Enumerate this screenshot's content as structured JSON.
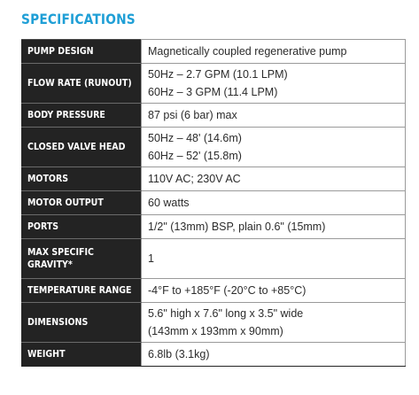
{
  "title": "SPECIFICATIONS",
  "specs": [
    {
      "label": "PUMP DESIGN",
      "values": [
        "Magnetically coupled regenerative pump"
      ]
    },
    {
      "label": "FLOW RATE (RUNOUT)",
      "values": [
        "50Hz – 2.7 GPM (10.1 LPM)",
        "60Hz – 3 GPM (11.4 LPM)"
      ]
    },
    {
      "label": "BODY PRESSURE",
      "values": [
        "87 psi (6 bar) max"
      ]
    },
    {
      "label": "CLOSED VALVE HEAD",
      "values": [
        "50Hz – 48' (14.6m)",
        "60Hz – 52' (15.8m)"
      ]
    },
    {
      "label": "MOTORS",
      "values": [
        "110V AC; 230V AC"
      ]
    },
    {
      "label": "MOTOR OUTPUT",
      "values": [
        "60 watts"
      ]
    },
    {
      "label": "PORTS",
      "values": [
        "1/2\" (13mm) BSP, plain 0.6\" (15mm)"
      ]
    },
    {
      "label": "MAX SPECIFIC GRAVITY*",
      "values": [
        "1"
      ]
    },
    {
      "label": "TEMPERATURE RANGE",
      "values": [
        "-4°F to +185°F (-20°C to +85°C)"
      ]
    },
    {
      "label": "DIMENSIONS",
      "values": [
        "5.6\" high x 7.6\" long x 3.5\" wide",
        "(143mm x 193mm x 90mm)"
      ]
    },
    {
      "label": "WEIGHT",
      "values": [
        "6.8lb (3.1kg)"
      ]
    }
  ]
}
